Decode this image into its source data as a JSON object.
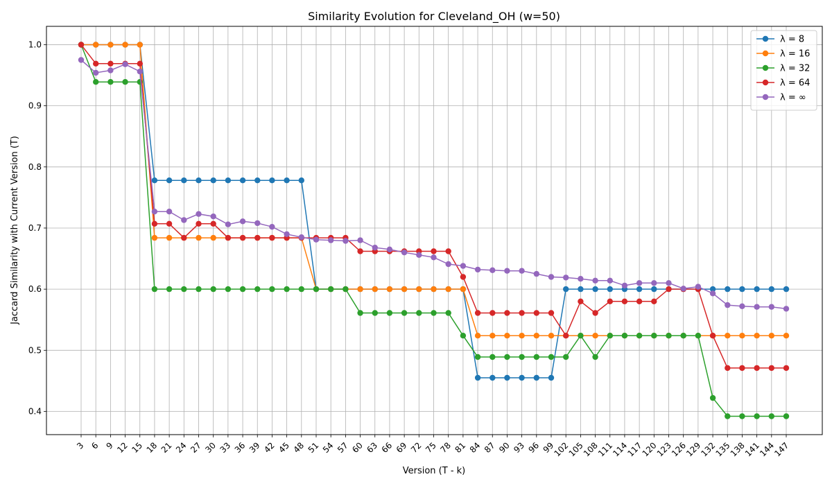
{
  "chart_data": {
    "type": "line",
    "title": "Similarity Evolution for Cleveland_OH (w=50)",
    "xlabel": "Version (T - k)",
    "ylabel": "Jaccard Similarity with Current Version (T)",
    "x": [
      3,
      6,
      9,
      12,
      15,
      18,
      21,
      24,
      27,
      30,
      33,
      36,
      39,
      42,
      45,
      48,
      51,
      54,
      57,
      60,
      63,
      66,
      69,
      72,
      75,
      78,
      81,
      84,
      87,
      90,
      93,
      96,
      99,
      102,
      105,
      108,
      111,
      114,
      117,
      120,
      123,
      126,
      129,
      132,
      135,
      138,
      141,
      144,
      147
    ],
    "ylim": [
      0.362,
      1.03
    ],
    "yticks": [
      0.4,
      0.5,
      0.6,
      0.7,
      0.8,
      0.9,
      1.0
    ],
    "ytick_labels": [
      "0.4",
      "0.5",
      "0.6",
      "0.7",
      "0.8",
      "0.9",
      "1.0"
    ],
    "grid": true,
    "legend_position": "top-right",
    "series": [
      {
        "name": "λ = 8",
        "color": "#1f77b4",
        "values": [
          1.0,
          1.0,
          1.0,
          1.0,
          1.0,
          0.778,
          0.778,
          0.778,
          0.778,
          0.778,
          0.778,
          0.778,
          0.778,
          0.778,
          0.778,
          0.778,
          0.6,
          0.6,
          0.6,
          0.6,
          0.6,
          0.6,
          0.6,
          0.6,
          0.6,
          0.6,
          0.6,
          0.455,
          0.455,
          0.455,
          0.455,
          0.455,
          0.455,
          0.6,
          0.6,
          0.6,
          0.6,
          0.6,
          0.6,
          0.6,
          0.6,
          0.6,
          0.6,
          0.6,
          0.6,
          0.6,
          0.6,
          0.6,
          0.6
        ]
      },
      {
        "name": "λ = 16",
        "color": "#ff7f0e",
        "values": [
          1.0,
          1.0,
          1.0,
          1.0,
          1.0,
          0.684,
          0.684,
          0.684,
          0.684,
          0.684,
          0.684,
          0.684,
          0.684,
          0.684,
          0.684,
          0.684,
          0.6,
          0.6,
          0.6,
          0.6,
          0.6,
          0.6,
          0.6,
          0.6,
          0.6,
          0.6,
          0.6,
          0.524,
          0.524,
          0.524,
          0.524,
          0.524,
          0.524,
          0.524,
          0.524,
          0.524,
          0.524,
          0.524,
          0.524,
          0.524,
          0.524,
          0.524,
          0.524,
          0.524,
          0.524,
          0.524,
          0.524,
          0.524,
          0.524
        ]
      },
      {
        "name": "λ = 32",
        "color": "#2ca02c",
        "values": [
          1.0,
          0.939,
          0.939,
          0.939,
          0.939,
          0.6,
          0.6,
          0.6,
          0.6,
          0.6,
          0.6,
          0.6,
          0.6,
          0.6,
          0.6,
          0.6,
          0.6,
          0.6,
          0.6,
          0.561,
          0.561,
          0.561,
          0.561,
          0.561,
          0.561,
          0.561,
          0.524,
          0.489,
          0.489,
          0.489,
          0.489,
          0.489,
          0.489,
          0.489,
          0.524,
          0.489,
          0.524,
          0.524,
          0.524,
          0.524,
          0.524,
          0.524,
          0.524,
          0.422,
          0.392,
          0.392,
          0.392,
          0.392,
          0.392
        ]
      },
      {
        "name": "λ = 64",
        "color": "#d62728",
        "values": [
          1.0,
          0.969,
          0.969,
          0.969,
          0.969,
          0.707,
          0.707,
          0.684,
          0.707,
          0.707,
          0.684,
          0.684,
          0.684,
          0.684,
          0.684,
          0.684,
          0.684,
          0.684,
          0.684,
          0.662,
          0.662,
          0.662,
          0.662,
          0.662,
          0.662,
          0.662,
          0.62,
          0.561,
          0.561,
          0.561,
          0.561,
          0.561,
          0.561,
          0.524,
          0.58,
          0.561,
          0.58,
          0.58,
          0.58,
          0.58,
          0.6,
          0.6,
          0.6,
          0.524,
          0.471,
          0.471,
          0.471,
          0.471,
          0.471
        ]
      },
      {
        "name": "λ = ∞",
        "color": "#9467bd",
        "values": [
          0.975,
          0.954,
          0.958,
          0.968,
          0.956,
          0.727,
          0.727,
          0.713,
          0.723,
          0.719,
          0.706,
          0.711,
          0.708,
          0.702,
          0.69,
          0.685,
          0.681,
          0.68,
          0.679,
          0.68,
          0.668,
          0.665,
          0.66,
          0.656,
          0.652,
          0.641,
          0.638,
          0.632,
          0.631,
          0.63,
          0.63,
          0.625,
          0.62,
          0.619,
          0.617,
          0.614,
          0.614,
          0.606,
          0.61,
          0.61,
          0.61,
          0.601,
          0.604,
          0.593,
          0.574,
          0.572,
          0.571,
          0.571,
          0.568
        ]
      }
    ]
  }
}
